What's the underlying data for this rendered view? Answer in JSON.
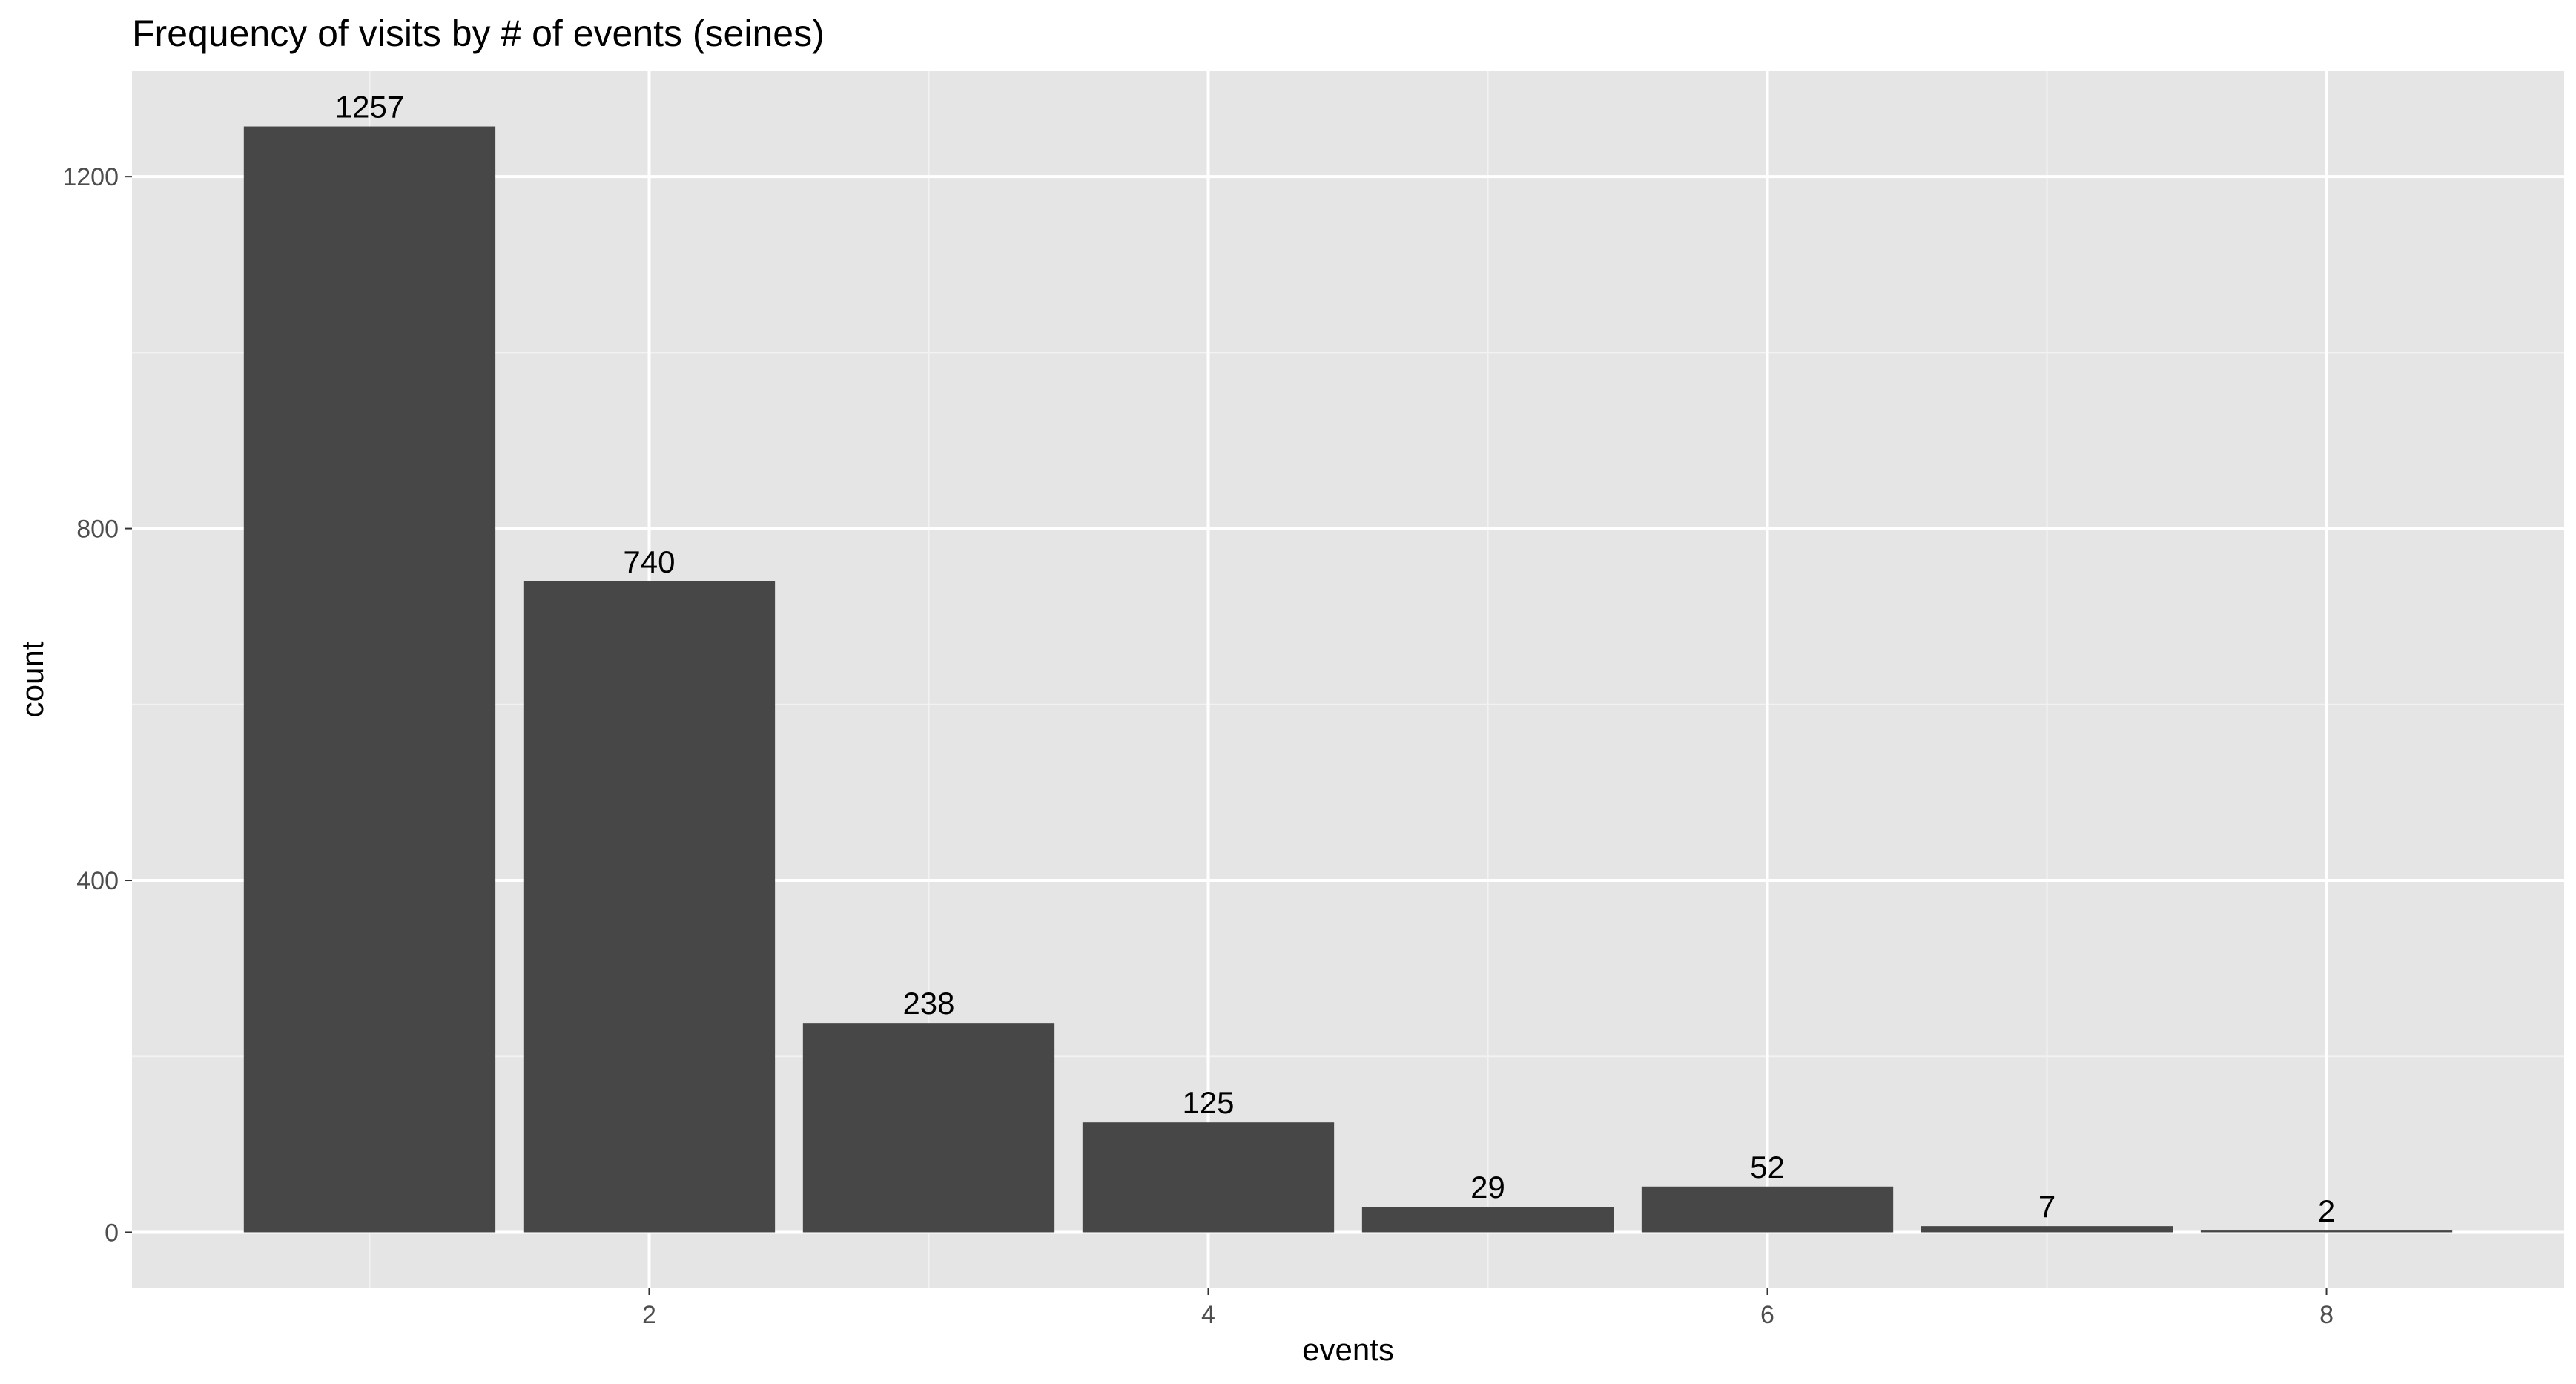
{
  "chart_data": {
    "type": "bar",
    "title": "Frequency of visits by # of events (seines)",
    "xlabel": "events",
    "ylabel": "count",
    "x": [
      1,
      2,
      3,
      4,
      5,
      6,
      7,
      8
    ],
    "values": [
      1257,
      740,
      238,
      125,
      29,
      52,
      7,
      2
    ],
    "data_labels": [
      "1257",
      "740",
      "238",
      "125",
      "29",
      "52",
      "7",
      "2"
    ],
    "xlim": [
      0.15,
      8.85
    ],
    "ylim": [
      -62.85,
      1319.85
    ],
    "x_ticks": [
      2,
      4,
      6,
      8
    ],
    "x_tick_labels": [
      "2",
      "4",
      "6",
      "8"
    ],
    "y_ticks": [
      0,
      400,
      800,
      1200
    ],
    "y_tick_labels": [
      "0",
      "400",
      "800",
      "1200"
    ],
    "grid": true,
    "legend": "none",
    "colors": {
      "bar": "#474747",
      "panel_background": "#e5e5e5",
      "grid_major": "#ffffff",
      "grid_minor": "#f2f2f2",
      "tick_text": "#4d4d4d",
      "text": "#000000"
    }
  }
}
